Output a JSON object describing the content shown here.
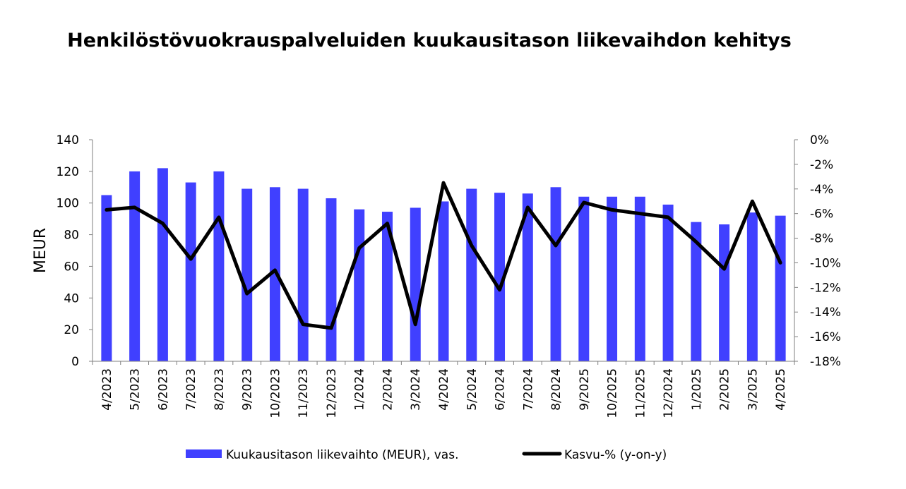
{
  "chart_data": {
    "type": "bar",
    "title": "Henkilöstövuokrauspalveluiden kuukausitason liikevaihdon kehitys",
    "categories": [
      "4/2023",
      "5/2023",
      "6/2023",
      "7/2023",
      "8/2023",
      "9/2023",
      "10/2023",
      "11/2023",
      "12/2023",
      "1/2024",
      "2/2024",
      "3/2024",
      "4/2024",
      "5/2024",
      "6/2024",
      "7/2024",
      "8/2024",
      "9/2025",
      "10/2025",
      "11/2025",
      "12/2024",
      "1/2025",
      "2/2025",
      "3/2025",
      "4/2025"
    ],
    "ylabel": "MEUR",
    "ylim": [
      0,
      140
    ],
    "yticks": [
      "0",
      "20",
      "40",
      "60",
      "80",
      "100",
      "120",
      "140"
    ],
    "y2lim": [
      -18,
      0
    ],
    "y2ticks": [
      "-18%",
      "-16%",
      "-14%",
      "-12%",
      "-10%",
      "-8%",
      "-6%",
      "-4%",
      "-2%",
      "0%"
    ],
    "series": [
      {
        "name": "Kuukausitason liikevaihto (MEUR), vas.",
        "type": "bar",
        "axis": "left",
        "color": "#4040ff",
        "values": [
          105,
          120,
          122,
          113,
          120,
          109,
          110,
          109,
          103,
          96,
          94.5,
          97,
          101,
          109,
          106.5,
          106,
          110,
          104,
          104,
          104,
          99,
          88,
          86.5,
          94,
          92
        ]
      },
      {
        "name": "Kasvu-% (y-on-y)",
        "type": "line",
        "axis": "right",
        "color": "#000000",
        "values": [
          -5.7,
          -5.5,
          -6.8,
          -9.7,
          -6.3,
          -12.5,
          -10.6,
          -15.0,
          -15.3,
          -8.8,
          -6.8,
          -15.0,
          -3.5,
          -8.6,
          -12.2,
          -5.5,
          -8.6,
          -5.1,
          -5.7,
          -6.0,
          -6.3,
          -8.3,
          -10.5,
          -5.0,
          -10.0
        ]
      }
    ],
    "grid": false,
    "legend": "bottom"
  }
}
